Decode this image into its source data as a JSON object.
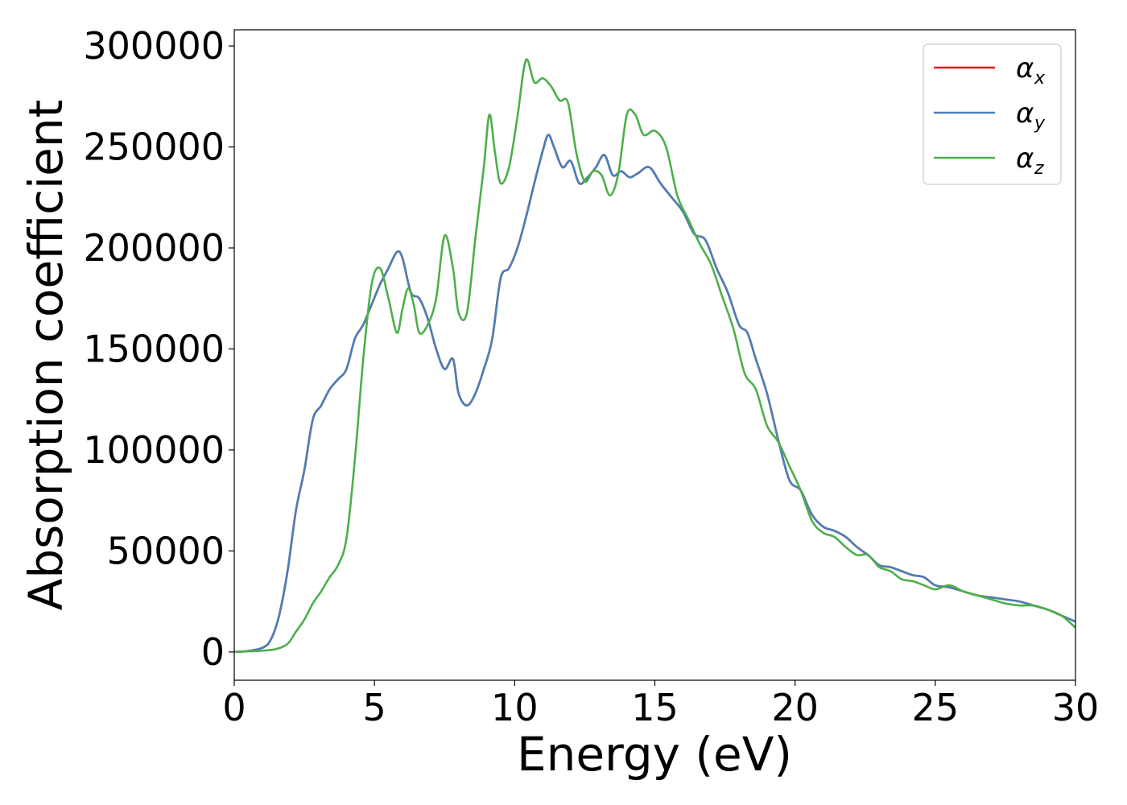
{
  "chart_data": {
    "type": "line",
    "xlabel": "Energy (eV)",
    "ylabel": "Absorption coefficient",
    "xlim": [
      0,
      30
    ],
    "ylim": [
      -14000,
      308000
    ],
    "xticks": [
      0,
      5,
      10,
      15,
      20,
      25,
      30
    ],
    "yticks": [
      0,
      50000,
      100000,
      150000,
      200000,
      250000,
      300000
    ],
    "grid": false,
    "legend_position": "top-right",
    "series": [
      {
        "name": "α_x",
        "legend_symbol": "α",
        "legend_subscript": "x",
        "color": "#e41a1c",
        "x": [
          0,
          0.5,
          1.0,
          1.3,
          1.6,
          1.9,
          2.2,
          2.5,
          2.8,
          3.1,
          3.4,
          3.7,
          4.0,
          4.3,
          4.6,
          4.9,
          5.2,
          5.5,
          5.8,
          6.0,
          6.3,
          6.6,
          6.9,
          7.2,
          7.5,
          7.8,
          8.0,
          8.3,
          8.6,
          8.9,
          9.2,
          9.5,
          9.8,
          10.1,
          10.4,
          10.7,
          11.0,
          11.2,
          11.4,
          11.7,
          12.0,
          12.3,
          12.6,
          12.9,
          13.2,
          13.5,
          13.8,
          14.1,
          14.4,
          14.8,
          15.2,
          15.6,
          16.0,
          16.4,
          16.8,
          17.2,
          17.6,
          18.0,
          18.3,
          18.6,
          19.0,
          19.4,
          19.8,
          20.2,
          20.6,
          21.0,
          21.4,
          21.8,
          22.2,
          22.6,
          23.0,
          23.4,
          23.8,
          24.2,
          24.6,
          25.0,
          25.5,
          26.0,
          26.5,
          27.0,
          27.5,
          28.0,
          28.5,
          29.0,
          29.5,
          30.0
        ],
        "y": [
          0,
          500,
          2000,
          6000,
          18000,
          40000,
          70000,
          90000,
          115000,
          122000,
          130000,
          135000,
          140000,
          155000,
          162000,
          172000,
          182000,
          190000,
          198000,
          195000,
          178000,
          175000,
          165000,
          150000,
          140000,
          145000,
          128000,
          122000,
          128000,
          140000,
          155000,
          185000,
          190000,
          200000,
          215000,
          232000,
          248000,
          256000,
          250000,
          240000,
          243000,
          232000,
          235000,
          240000,
          246000,
          236000,
          238000,
          235000,
          237000,
          240000,
          232000,
          225000,
          218000,
          207000,
          204000,
          190000,
          178000,
          162000,
          158000,
          145000,
          128000,
          105000,
          85000,
          80000,
          68000,
          62000,
          60000,
          57000,
          52000,
          48000,
          43000,
          42000,
          40000,
          38000,
          37000,
          33000,
          32000,
          30000,
          28000,
          27000,
          26000,
          25000,
          23000,
          21000,
          18000,
          15000
        ]
      },
      {
        "name": "α_y",
        "legend_symbol": "α",
        "legend_subscript": "y",
        "color": "#4a7fb8",
        "x": [
          0,
          0.5,
          1.0,
          1.3,
          1.6,
          1.9,
          2.2,
          2.5,
          2.8,
          3.1,
          3.4,
          3.7,
          4.0,
          4.3,
          4.6,
          4.9,
          5.2,
          5.5,
          5.8,
          6.0,
          6.3,
          6.6,
          6.9,
          7.2,
          7.5,
          7.8,
          8.0,
          8.3,
          8.6,
          8.9,
          9.2,
          9.5,
          9.8,
          10.1,
          10.4,
          10.7,
          11.0,
          11.2,
          11.4,
          11.7,
          12.0,
          12.3,
          12.6,
          12.9,
          13.2,
          13.5,
          13.8,
          14.1,
          14.4,
          14.8,
          15.2,
          15.6,
          16.0,
          16.4,
          16.8,
          17.2,
          17.6,
          18.0,
          18.3,
          18.6,
          19.0,
          19.4,
          19.8,
          20.2,
          20.6,
          21.0,
          21.4,
          21.8,
          22.2,
          22.6,
          23.0,
          23.4,
          23.8,
          24.2,
          24.6,
          25.0,
          25.5,
          26.0,
          26.5,
          27.0,
          27.5,
          28.0,
          28.5,
          29.0,
          29.5,
          30.0
        ],
        "y": [
          0,
          500,
          2000,
          6000,
          18000,
          40000,
          70000,
          90000,
          115000,
          122000,
          130000,
          135000,
          140000,
          155000,
          162000,
          172000,
          182000,
          190000,
          198000,
          195000,
          178000,
          175000,
          165000,
          150000,
          140000,
          145000,
          128000,
          122000,
          128000,
          140000,
          155000,
          185000,
          190000,
          200000,
          215000,
          232000,
          248000,
          256000,
          250000,
          240000,
          243000,
          232000,
          235000,
          240000,
          246000,
          236000,
          238000,
          235000,
          237000,
          240000,
          232000,
          225000,
          218000,
          207000,
          204000,
          190000,
          178000,
          162000,
          158000,
          145000,
          128000,
          105000,
          85000,
          80000,
          68000,
          62000,
          60000,
          57000,
          52000,
          48000,
          43000,
          42000,
          40000,
          38000,
          37000,
          33000,
          32000,
          30000,
          28000,
          27000,
          26000,
          25000,
          23000,
          21000,
          18000,
          15000
        ]
      },
      {
        "name": "α_z",
        "legend_symbol": "α",
        "legend_subscript": "z",
        "color": "#4daf4a",
        "x": [
          0,
          0.5,
          1.0,
          1.5,
          1.9,
          2.2,
          2.5,
          2.8,
          3.1,
          3.4,
          3.7,
          4.0,
          4.3,
          4.6,
          4.9,
          5.2,
          5.5,
          5.8,
          6.0,
          6.2,
          6.4,
          6.6,
          6.9,
          7.2,
          7.5,
          7.8,
          8.0,
          8.3,
          8.6,
          8.9,
          9.1,
          9.3,
          9.5,
          9.8,
          10.1,
          10.4,
          10.7,
          11.0,
          11.3,
          11.6,
          11.9,
          12.2,
          12.5,
          12.8,
          13.1,
          13.4,
          13.7,
          14.0,
          14.3,
          14.6,
          15.0,
          15.4,
          15.8,
          16.2,
          16.6,
          17.0,
          17.4,
          17.8,
          18.2,
          18.6,
          19.0,
          19.4,
          19.8,
          20.2,
          20.6,
          21.0,
          21.4,
          21.8,
          22.2,
          22.6,
          23.0,
          23.4,
          23.8,
          24.2,
          24.6,
          25.0,
          25.5,
          26.0,
          26.5,
          27.0,
          27.5,
          28.0,
          28.5,
          29.0,
          29.5,
          30.0
        ],
        "y": [
          0,
          300,
          600,
          1500,
          4000,
          10000,
          16000,
          24000,
          30000,
          37000,
          43000,
          56000,
          95000,
          145000,
          182000,
          190000,
          175000,
          158000,
          170000,
          180000,
          172000,
          158000,
          162000,
          175000,
          206000,
          190000,
          168000,
          168000,
          205000,
          240000,
          266000,
          247000,
          232000,
          240000,
          265000,
          293000,
          282000,
          284000,
          280000,
          273000,
          272000,
          247000,
          233000,
          238000,
          236000,
          226000,
          237000,
          266000,
          266000,
          256000,
          258000,
          250000,
          226000,
          214000,
          202000,
          192000,
          176000,
          160000,
          138000,
          130000,
          112000,
          104000,
          92000,
          80000,
          65000,
          59000,
          57000,
          52000,
          48000,
          48000,
          42000,
          40000,
          36000,
          35000,
          33000,
          31000,
          33000,
          30000,
          28000,
          26000,
          24000,
          23000,
          23000,
          21000,
          18000,
          12000
        ]
      }
    ]
  }
}
